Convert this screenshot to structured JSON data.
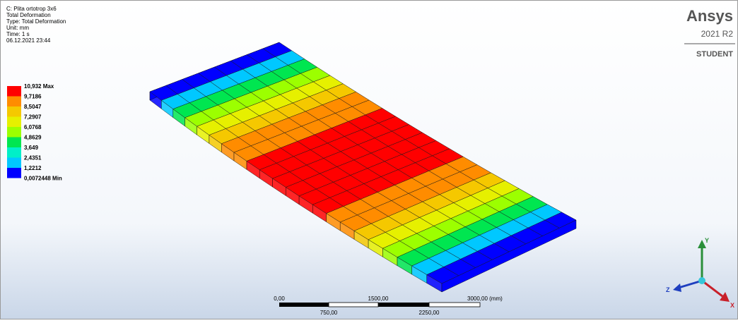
{
  "header": {
    "lines": [
      "C: Plita ortotrop 3x6",
      "Total Deformation",
      "Type: Total Deformation",
      "Unit: mm",
      "Time: 1 s",
      "06.12.2021 23:44"
    ]
  },
  "legend": {
    "labels": [
      "10,932 Max",
      "9,7186",
      "8,5047",
      "7,2907",
      "6,0768",
      "4,8629",
      "3,649",
      "2,4351",
      "1,2212",
      "0,0072448 Min"
    ],
    "colors": [
      "#ff0000",
      "#ff8c00",
      "#f5c800",
      "#e6f000",
      "#9cff00",
      "#00e650",
      "#00f0c8",
      "#00c8ff",
      "#0000ff"
    ]
  },
  "logo": {
    "brand": "Ansys",
    "version": "2021 R2",
    "edition": "STUDENT"
  },
  "scale_bar": {
    "top_labels": [
      "0,00",
      "1500,00",
      "3000,00 (mm)"
    ],
    "bottom_labels": [
      "750,00",
      "2250,00"
    ]
  },
  "triad": {
    "y": "Y",
    "z": "Z",
    "x": "X"
  }
}
